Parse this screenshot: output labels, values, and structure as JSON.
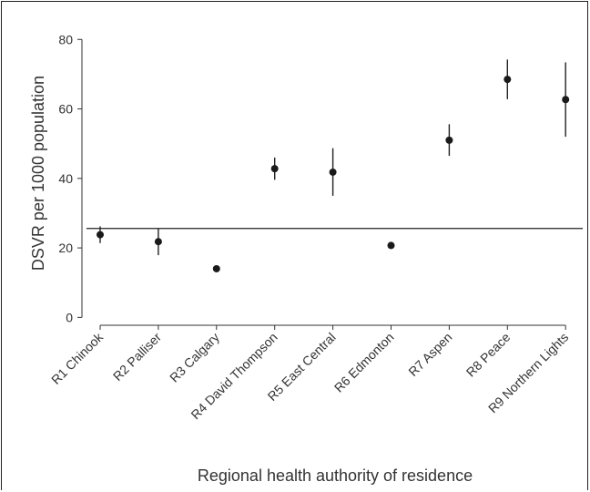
{
  "chart_data": {
    "type": "scatter",
    "title": "",
    "xlabel": "Regional health authority of residence",
    "ylabel": "DSVR per 1000 population",
    "categories": [
      "R1 Chinook",
      "R2 Palliser",
      "R3 Calgary",
      "R4 David Thompson",
      "R5 East Central",
      "R6 Edmonton",
      "R7 Aspen",
      "R8 Peace",
      "R9 Northern Lights"
    ],
    "series": [
      {
        "values": [
          23.8,
          21.8,
          14.0,
          42.8,
          41.8,
          20.7,
          51.0,
          68.5,
          62.7
        ],
        "lower": [
          21.4,
          17.9,
          13.3,
          39.6,
          35.0,
          19.9,
          46.5,
          62.8,
          52.0
        ],
        "upper": [
          26.2,
          25.7,
          14.7,
          46.0,
          48.7,
          21.5,
          55.6,
          74.2,
          73.4
        ]
      }
    ],
    "reference_line": 25.6,
    "ylim": [
      -2,
      84
    ],
    "yticks": [
      0,
      20,
      40,
      60,
      80
    ],
    "grid": false,
    "marker_color": "#1a1a1a"
  }
}
